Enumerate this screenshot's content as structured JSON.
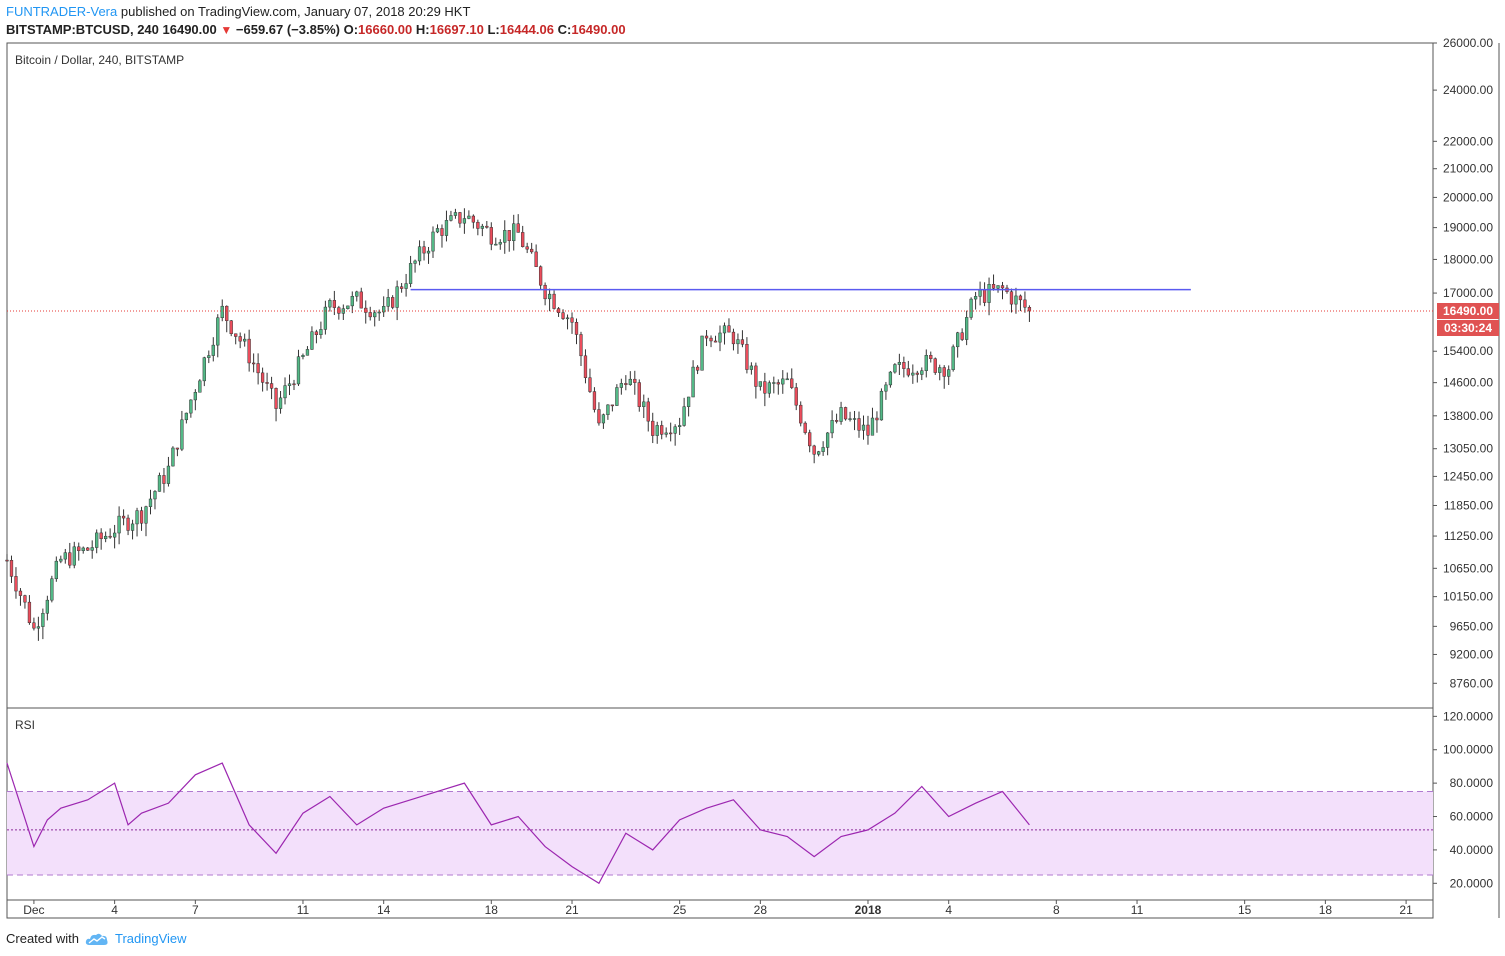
{
  "header": {
    "author": "FUNTRADER-Vera",
    "published_text": "published on TradingView.com, January 07, 2018 20:29 HKT",
    "symbol": "BITSTAMP:BTCUSD, 240",
    "last": "16490.00",
    "change": "−659.67 (−3.85%)",
    "o_label": "O:",
    "o_val": "16660.00",
    "h_label": "H:",
    "h_val": "16697.10",
    "l_label": "L:",
    "l_val": "16444.06",
    "c_label": "C:",
    "c_val": "16490.00"
  },
  "footer": {
    "created_with": "Created with",
    "brand": "TradingView"
  },
  "colors": {
    "up": "#53b987",
    "down": "#eb4d5c",
    "wick": "#333333",
    "resistance": "#5a5af0",
    "price_line": "#e53935",
    "price_tag": "#e05252",
    "rsi_line": "#9c27b0",
    "rsi_band": "#f3e0fb"
  },
  "chart_data": [
    {
      "type": "candlestick",
      "title": "Bitcoin / Dollar, 240, BITSTAMP",
      "y_scale": "log",
      "ylim": [
        8400,
        26000
      ],
      "y_ticks": [
        26000,
        24000,
        22000,
        21000,
        20000,
        19000,
        18000,
        17000,
        16490,
        15400,
        14600,
        13800,
        13050,
        12450,
        11850,
        11250,
        10650,
        10150,
        9650,
        9200,
        8760
      ],
      "y_tick_labels": [
        "26000.00",
        "24000.00",
        "22000.00",
        "21000.00",
        "20000.00",
        "19000.00",
        "18000.00",
        "17000.00",
        "",
        "15400.00",
        "14600.00",
        "13800.00",
        "13050.00",
        "12450.00",
        "11850.00",
        "11250.00",
        "10650.00",
        "10150.00",
        "9650.00",
        "9200.00",
        "8760.00"
      ],
      "x_range": [
        "2017-11-30",
        "2018-01-22"
      ],
      "x_ticks": [
        "2017-12-01",
        "2017-12-04",
        "2017-12-07",
        "2017-12-11",
        "2017-12-14",
        "2017-12-18",
        "2017-12-21",
        "2017-12-25",
        "2017-12-28",
        "2018-01-01",
        "2018-01-04",
        "2018-01-08",
        "2018-01-11",
        "2018-01-15",
        "2018-01-18",
        "2018-01-21"
      ],
      "x_tick_labels": [
        "Dec",
        "4",
        "7",
        "11",
        "14",
        "18",
        "21",
        "25",
        "28",
        "2018",
        "4",
        "8",
        "11",
        "15",
        "18",
        "21"
      ],
      "last_price": 16490.0,
      "last_price_label": "16490.00",
      "countdown_label": "03:30:24",
      "resistance_level": 17100,
      "resistance_range": [
        "2017-12-15",
        "2018-01-13"
      ],
      "anchors": [
        [
          "2017-11-30",
          10800
        ],
        [
          "2017-12-01",
          9600
        ],
        [
          "2017-12-02",
          10800
        ],
        [
          "2017-12-03",
          11000
        ],
        [
          "2017-12-04",
          11400
        ],
        [
          "2017-12-05",
          11700
        ],
        [
          "2017-12-06",
          12600
        ],
        [
          "2017-12-07",
          14500
        ],
        [
          "2017-12-08",
          16500
        ],
        [
          "2017-12-09",
          15300
        ],
        [
          "2017-12-10",
          14000
        ],
        [
          "2017-12-11",
          15200
        ],
        [
          "2017-12-12",
          16600
        ],
        [
          "2017-12-13",
          16800
        ],
        [
          "2017-12-14",
          16400
        ],
        [
          "2017-12-15",
          17700
        ],
        [
          "2017-12-16",
          18900
        ],
        [
          "2017-12-17",
          19400
        ],
        [
          "2017-12-18",
          18800
        ],
        [
          "2017-12-19",
          18800
        ],
        [
          "2017-12-20",
          17100
        ],
        [
          "2017-12-21",
          16200
        ],
        [
          "2017-12-22",
          13500
        ],
        [
          "2017-12-23",
          14800
        ],
        [
          "2017-12-24",
          13500
        ],
        [
          "2017-12-25",
          13700
        ],
        [
          "2017-12-26",
          15900
        ],
        [
          "2017-12-27",
          15800
        ],
        [
          "2017-12-28",
          14400
        ],
        [
          "2017-12-29",
          14600
        ],
        [
          "2017-12-30",
          13000
        ],
        [
          "2017-12-31",
          13800
        ],
        [
          "2018-01-01",
          13400
        ],
        [
          "2018-01-02",
          14900
        ],
        [
          "2018-01-03",
          15100
        ],
        [
          "2018-01-04",
          15000
        ],
        [
          "2018-01-05",
          16900
        ],
        [
          "2018-01-06",
          17100
        ],
        [
          "2018-01-07",
          16490
        ]
      ]
    },
    {
      "type": "line",
      "title": "RSI",
      "ylim": [
        10,
        125
      ],
      "y_ticks": [
        120,
        100,
        80,
        60,
        40,
        20
      ],
      "y_tick_labels": [
        "120.0000",
        "100.0000",
        "80.0000",
        "60.0000",
        "40.0000",
        "20.0000"
      ],
      "band": [
        25,
        75
      ],
      "midline": 52,
      "points": [
        [
          "2017-11-30",
          92
        ],
        [
          "2017-12-01",
          42
        ],
        [
          "2017-12-01T12",
          58
        ],
        [
          "2017-12-02",
          65
        ],
        [
          "2017-12-03",
          70
        ],
        [
          "2017-12-04",
          80
        ],
        [
          "2017-12-04T12",
          55
        ],
        [
          "2017-12-05",
          62
        ],
        [
          "2017-12-06",
          68
        ],
        [
          "2017-12-07",
          85
        ],
        [
          "2017-12-08",
          92
        ],
        [
          "2017-12-09",
          55
        ],
        [
          "2017-12-10",
          38
        ],
        [
          "2017-12-11",
          62
        ],
        [
          "2017-12-12",
          72
        ],
        [
          "2017-12-13",
          55
        ],
        [
          "2017-12-14",
          65
        ],
        [
          "2017-12-15",
          70
        ],
        [
          "2017-12-16",
          75
        ],
        [
          "2017-12-17",
          80
        ],
        [
          "2017-12-18",
          55
        ],
        [
          "2017-12-19",
          60
        ],
        [
          "2017-12-20",
          42
        ],
        [
          "2017-12-21",
          30
        ],
        [
          "2017-12-22",
          20
        ],
        [
          "2017-12-23",
          50
        ],
        [
          "2017-12-24",
          40
        ],
        [
          "2017-12-25",
          58
        ],
        [
          "2017-12-26",
          65
        ],
        [
          "2017-12-27",
          70
        ],
        [
          "2017-12-28",
          52
        ],
        [
          "2017-12-29",
          48
        ],
        [
          "2017-12-30",
          36
        ],
        [
          "2017-12-31",
          48
        ],
        [
          "2018-01-01",
          52
        ],
        [
          "2018-01-02",
          62
        ],
        [
          "2018-01-03",
          78
        ],
        [
          "2018-01-04",
          60
        ],
        [
          "2018-01-05",
          68
        ],
        [
          "2018-01-06",
          75
        ],
        [
          "2018-01-07",
          55
        ]
      ]
    }
  ]
}
